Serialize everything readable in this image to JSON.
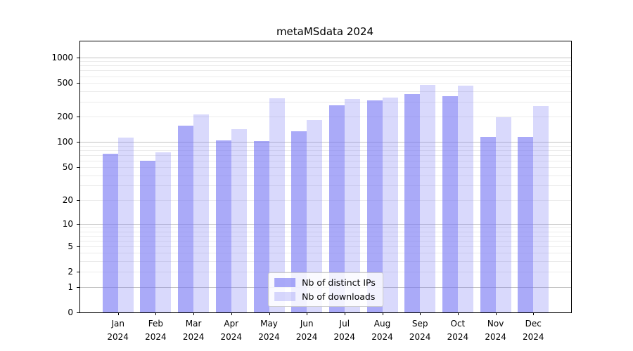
{
  "title": "metaMSdata 2024",
  "chart_data": {
    "type": "bar",
    "title": "metaMSdata 2024",
    "categories": [
      "Jan 2024",
      "Feb 2024",
      "Mar 2024",
      "Apr 2024",
      "May 2024",
      "Jun 2024",
      "Jul 2024",
      "Aug 2024",
      "Sep 2024",
      "Oct 2024",
      "Nov 2024",
      "Dec 2024"
    ],
    "series": [
      {
        "name": "Nb of distinct IPs",
        "color": "rgba(118,118,244,0.62)",
        "values": [
          72,
          60,
          157,
          104,
          102,
          135,
          272,
          311,
          368,
          350,
          115,
          115
        ]
      },
      {
        "name": "Nb of downloads",
        "color": "rgba(118,118,244,0.28)",
        "values": [
          112,
          76,
          213,
          141,
          330,
          182,
          321,
          338,
          478,
          466,
          197,
          265
        ]
      }
    ],
    "yscale": "log1p",
    "yticks": [
      0,
      1,
      2,
      5,
      10,
      20,
      50,
      100,
      200,
      500,
      1000
    ],
    "ylim": [
      0,
      1530
    ],
    "xlabel": "",
    "ylabel": "",
    "grid": true,
    "legend_position": "lower center inside"
  },
  "colors": {
    "bar_distinct_ips": "rgba(118,118,244,0.62)",
    "bar_downloads": "rgba(118,118,244,0.28)",
    "grid_major": "#c3c3c3",
    "grid_minor": "#ebebeb",
    "axis": "#000000",
    "background": "#ffffff"
  }
}
